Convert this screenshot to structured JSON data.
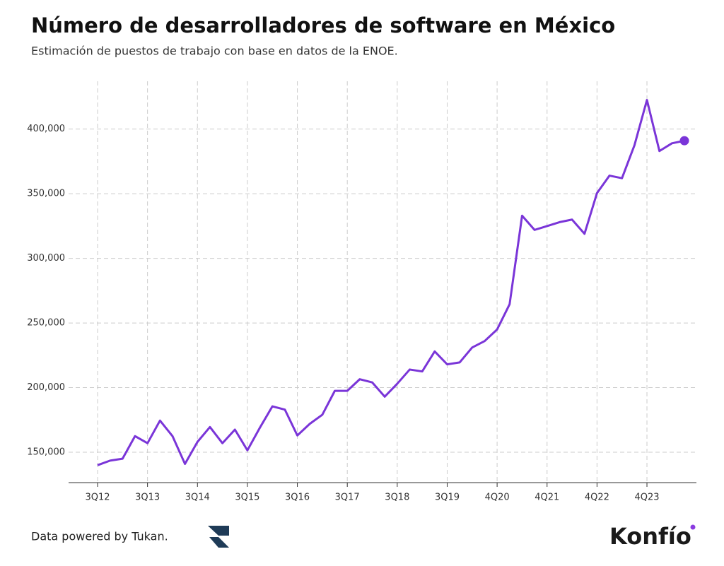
{
  "chart_data": {
    "type": "line",
    "title": "Número de desarrolladores de software en México",
    "subtitle": "Estimación de puestos de trabajo con base en datos de la ENOE.",
    "categories": [
      "3Q12",
      null,
      null,
      null,
      "3Q13",
      null,
      null,
      null,
      "3Q14",
      null,
      null,
      null,
      "3Q15",
      null,
      null,
      null,
      "3Q16",
      null,
      null,
      null,
      "3Q17",
      null,
      null,
      null,
      "3Q18",
      null,
      null,
      null,
      "3Q19",
      null,
      null,
      null,
      "4Q20",
      null,
      null,
      null,
      "4Q21",
      null,
      null,
      null,
      "4Q22",
      null,
      null,
      null,
      "4Q23",
      null,
      null,
      null
    ],
    "series": [
      {
        "color": "#7a35d8",
        "values": [
          140000,
          143500,
          145000,
          162500,
          157000,
          174500,
          162500,
          141000,
          158000,
          169500,
          157000,
          167500,
          151500,
          169000,
          185500,
          183000,
          163000,
          172000,
          179000,
          197500,
          197500,
          206500,
          204000,
          193000,
          203000,
          214000,
          212500,
          228000,
          218000,
          219500,
          231000,
          236000,
          245000,
          264500,
          333000,
          322000,
          325000,
          328000,
          330000,
          319000,
          350500,
          364000,
          362000,
          387500,
          422500,
          383000,
          389000,
          391000
        ]
      }
    ],
    "ylim": [
      126500,
      437000
    ],
    "yticks": [
      {
        "value": 150000,
        "label": "150,000"
      },
      {
        "value": 200000,
        "label": "200,000"
      },
      {
        "value": 250000,
        "label": "250,000"
      },
      {
        "value": 300000,
        "label": "300,000"
      },
      {
        "value": 350000,
        "label": "350,000"
      },
      {
        "value": 400000,
        "label": "400,000"
      }
    ],
    "grid": true,
    "footer": "Data powered by Tukan.",
    "brand": "Konfío"
  }
}
